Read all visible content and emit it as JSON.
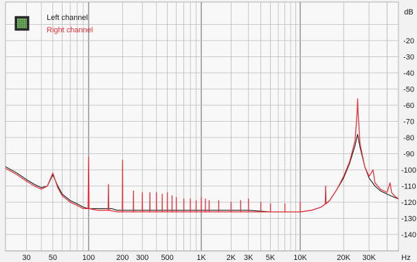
{
  "chart_data": {
    "type": "line",
    "title": "",
    "xlabel": "",
    "ylabel": "",
    "x_scale": "log",
    "xlim": [
      20,
      48000
    ],
    "ylim": [
      -150,
      0
    ],
    "grid": true,
    "legend_placement": "top-left",
    "y_unit_label": "dB",
    "x_unit_label": "Hz",
    "y_tick_values": [
      -20,
      -30,
      -40,
      -50,
      -60,
      -70,
      -80,
      -90,
      -100,
      -110,
      -120,
      -130,
      -140
    ],
    "y_tick_labels": [
      "-20",
      "-30",
      "-40",
      "-50",
      "-60",
      "-70",
      "-80",
      "-90",
      "-100",
      "-110",
      "-120",
      "-130",
      "-140"
    ],
    "x_tick_values": [
      30,
      50,
      100,
      200,
      300,
      500,
      1000,
      2000,
      3000,
      5000,
      10000,
      20000,
      30000
    ],
    "x_tick_labels": [
      "30",
      "50",
      "100",
      "200",
      "300",
      "500",
      "1K",
      "2K",
      "3K",
      "5K",
      "10K",
      "20K",
      "30K"
    ],
    "series": [
      {
        "name": "Left channel",
        "color": "#1a1a1a",
        "points": [
          [
            20,
            -98
          ],
          [
            25,
            -102
          ],
          [
            30,
            -106
          ],
          [
            35,
            -109
          ],
          [
            40,
            -111
          ],
          [
            45,
            -110
          ],
          [
            50,
            -103
          ],
          [
            55,
            -110
          ],
          [
            60,
            -115
          ],
          [
            70,
            -119
          ],
          [
            80,
            -121
          ],
          [
            90,
            -123
          ],
          [
            100,
            -124
          ],
          [
            120,
            -124
          ],
          [
            140,
            -124
          ],
          [
            160,
            -124
          ],
          [
            180,
            -125
          ],
          [
            200,
            -125
          ],
          [
            300,
            -125
          ],
          [
            500,
            -125
          ],
          [
            700,
            -125
          ],
          [
            1000,
            -125
          ],
          [
            1500,
            -125
          ],
          [
            2000,
            -125
          ],
          [
            3000,
            -125
          ],
          [
            5000,
            -126
          ],
          [
            7000,
            -126
          ],
          [
            10000,
            -126
          ],
          [
            12000,
            -125
          ],
          [
            14000,
            -123
          ],
          [
            16000,
            -119
          ],
          [
            18000,
            -112
          ],
          [
            20000,
            -105
          ],
          [
            22000,
            -96
          ],
          [
            24000,
            -85
          ],
          [
            25000,
            -78
          ],
          [
            26000,
            -86
          ],
          [
            28000,
            -98
          ],
          [
            30000,
            -105
          ],
          [
            33000,
            -110
          ],
          [
            36000,
            -113
          ],
          [
            40000,
            -115
          ],
          [
            45000,
            -117
          ],
          [
            48000,
            -118
          ]
        ]
      },
      {
        "name": "Right channel",
        "color": "#e8303a",
        "points": [
          [
            20,
            -99
          ],
          [
            25,
            -103
          ],
          [
            30,
            -107
          ],
          [
            35,
            -110
          ],
          [
            40,
            -112
          ],
          [
            45,
            -110
          ],
          [
            50,
            -102
          ],
          [
            55,
            -111
          ],
          [
            60,
            -116
          ],
          [
            70,
            -120
          ],
          [
            80,
            -122
          ],
          [
            90,
            -124
          ],
          [
            99,
            -124
          ],
          [
            100,
            -92
          ],
          [
            101,
            -124
          ],
          [
            120,
            -125
          ],
          [
            149,
            -125
          ],
          [
            150,
            -109
          ],
          [
            151,
            -125
          ],
          [
            180,
            -126
          ],
          [
            199,
            -126
          ],
          [
            200,
            -94
          ],
          [
            201,
            -126
          ],
          [
            249,
            -126
          ],
          [
            250,
            -113
          ],
          [
            251,
            -126
          ],
          [
            299,
            -126
          ],
          [
            300,
            -114
          ],
          [
            301,
            -126
          ],
          [
            349,
            -126
          ],
          [
            350,
            -114
          ],
          [
            351,
            -126
          ],
          [
            399,
            -126
          ],
          [
            400,
            -114
          ],
          [
            401,
            -126
          ],
          [
            449,
            -126
          ],
          [
            450,
            -115
          ],
          [
            451,
            -126
          ],
          [
            499,
            -126
          ],
          [
            500,
            -114
          ],
          [
            501,
            -126
          ],
          [
            549,
            -126
          ],
          [
            550,
            -116
          ],
          [
            551,
            -126
          ],
          [
            599,
            -126
          ],
          [
            600,
            -117
          ],
          [
            601,
            -126
          ],
          [
            699,
            -126
          ],
          [
            700,
            -118
          ],
          [
            701,
            -126
          ],
          [
            799,
            -126
          ],
          [
            800,
            -118
          ],
          [
            801,
            -126
          ],
          [
            899,
            -126
          ],
          [
            900,
            -119
          ],
          [
            901,
            -126
          ],
          [
            999,
            -126
          ],
          [
            1000,
            -117
          ],
          [
            1001,
            -126
          ],
          [
            1099,
            -126
          ],
          [
            1100,
            -118
          ],
          [
            1101,
            -126
          ],
          [
            1199,
            -126
          ],
          [
            1200,
            -119
          ],
          [
            1201,
            -126
          ],
          [
            1499,
            -126
          ],
          [
            1500,
            -119
          ],
          [
            1501,
            -126
          ],
          [
            1999,
            -126
          ],
          [
            2000,
            -120
          ],
          [
            2001,
            -126
          ],
          [
            2499,
            -126
          ],
          [
            2500,
            -119
          ],
          [
            2501,
            -126
          ],
          [
            2999,
            -126
          ],
          [
            3000,
            -118
          ],
          [
            3001,
            -126
          ],
          [
            3999,
            -126
          ],
          [
            4000,
            -120
          ],
          [
            4001,
            -126
          ],
          [
            4999,
            -126
          ],
          [
            5000,
            -121
          ],
          [
            5001,
            -126
          ],
          [
            6999,
            -126
          ],
          [
            7000,
            -121
          ],
          [
            7001,
            -126
          ],
          [
            9999,
            -126
          ],
          [
            10000,
            -120
          ],
          [
            10001,
            -126
          ],
          [
            12000,
            -125
          ],
          [
            14000,
            -123
          ],
          [
            14900,
            -121
          ],
          [
            15000,
            -110
          ],
          [
            15100,
            -121
          ],
          [
            16000,
            -119
          ],
          [
            18000,
            -112
          ],
          [
            20000,
            -104
          ],
          [
            22000,
            -95
          ],
          [
            24000,
            -82
          ],
          [
            24800,
            -65
          ],
          [
            25000,
            -56
          ],
          [
            25200,
            -65
          ],
          [
            26000,
            -84
          ],
          [
            28000,
            -98
          ],
          [
            30000,
            -104
          ],
          [
            32000,
            -100
          ],
          [
            33000,
            -108
          ],
          [
            36000,
            -112
          ],
          [
            40000,
            -114
          ],
          [
            42000,
            -108
          ],
          [
            43000,
            -114
          ],
          [
            45000,
            -116
          ],
          [
            48000,
            -118
          ]
        ]
      }
    ]
  }
}
